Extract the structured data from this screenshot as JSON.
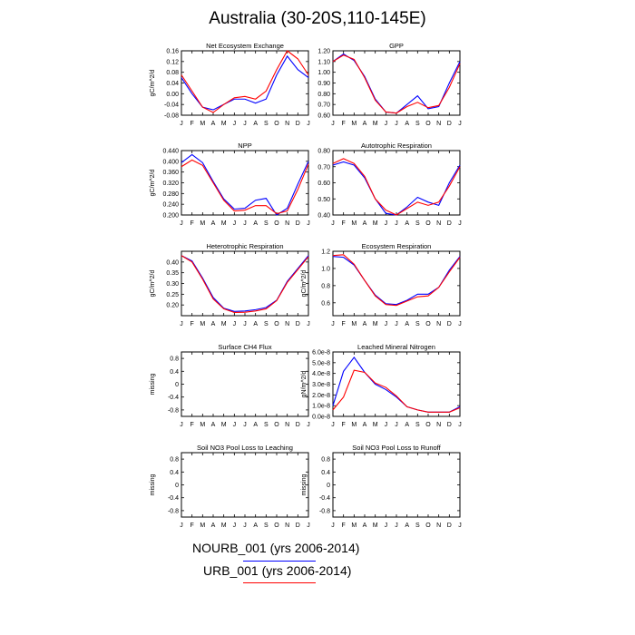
{
  "page_title": "Australia (30-20S,110-145E)",
  "colors": {
    "series_1": "#0000ff",
    "series_2": "#ff0000",
    "axis": "#000000"
  },
  "legend": [
    {
      "label": "NOURB_001 (yrs 2006-2014)",
      "color": "#0000ff"
    },
    {
      "label": "URB_001 (yrs 2006-2014)",
      "color": "#ff0000"
    }
  ],
  "chart_data": [
    {
      "type": "line",
      "title": "Net Ecosystem Exchange",
      "ylabel": "gC/m^2/d",
      "categories": [
        "J",
        "F",
        "M",
        "A",
        "M",
        "J",
        "J",
        "A",
        "S",
        "O",
        "N",
        "D",
        "J"
      ],
      "ylim": [
        -0.08,
        0.16
      ],
      "yticks": [
        -0.08,
        -0.04,
        0.0,
        0.04,
        0.08,
        0.12,
        0.16
      ],
      "ytick_labels": [
        "-0.08",
        "-0.04",
        "0.00",
        "0.04",
        "0.08",
        "0.12",
        "0.16"
      ],
      "series": [
        {
          "values": [
            0.06,
            0.0,
            -0.05,
            -0.06,
            -0.04,
            -0.02,
            -0.02,
            -0.035,
            -0.02,
            0.07,
            0.14,
            0.09,
            0.06
          ]
        },
        {
          "values": [
            0.07,
            0.01,
            -0.05,
            -0.07,
            -0.04,
            -0.015,
            -0.01,
            -0.02,
            0.01,
            0.09,
            0.16,
            0.13,
            0.07
          ]
        }
      ]
    },
    {
      "type": "line",
      "title": "GPP",
      "ylabel": "",
      "categories": [
        "J",
        "F",
        "M",
        "A",
        "M",
        "J",
        "J",
        "A",
        "S",
        "O",
        "N",
        "D",
        "J"
      ],
      "ylim": [
        0.6,
        1.2
      ],
      "yticks": [
        0.6,
        0.7,
        0.8,
        0.9,
        1.0,
        1.1,
        1.2
      ],
      "ytick_labels": [
        "0.60",
        "0.70",
        "0.80",
        "0.90",
        "1.00",
        "1.10",
        "1.20"
      ],
      "series": [
        {
          "values": [
            1.1,
            1.17,
            1.11,
            0.96,
            0.75,
            0.63,
            0.62,
            0.7,
            0.78,
            0.66,
            0.68,
            0.9,
            1.1
          ]
        },
        {
          "values": [
            1.1,
            1.16,
            1.12,
            0.95,
            0.74,
            0.63,
            0.62,
            0.68,
            0.72,
            0.67,
            0.69,
            0.86,
            1.08
          ]
        }
      ]
    },
    {
      "type": "line",
      "title": "NPP",
      "ylabel": "gC/m^2/d",
      "categories": [
        "J",
        "F",
        "M",
        "A",
        "M",
        "J",
        "J",
        "A",
        "S",
        "O",
        "N",
        "D",
        "J"
      ],
      "ylim": [
        0.2,
        0.44
      ],
      "yticks": [
        0.2,
        0.24,
        0.28,
        0.32,
        0.36,
        0.4,
        0.44
      ],
      "ytick_labels": [
        "0.200",
        "0.240",
        "0.280",
        "0.320",
        "0.360",
        "0.400",
        "0.440"
      ],
      "series": [
        {
          "values": [
            0.395,
            0.425,
            0.395,
            0.325,
            0.26,
            0.222,
            0.225,
            0.255,
            0.262,
            0.2,
            0.225,
            0.315,
            0.4
          ]
        },
        {
          "values": [
            0.38,
            0.405,
            0.385,
            0.32,
            0.255,
            0.215,
            0.218,
            0.235,
            0.235,
            0.205,
            0.215,
            0.295,
            0.39
          ]
        }
      ]
    },
    {
      "type": "line",
      "title": "Autotrophic Respiration",
      "ylabel": "",
      "categories": [
        "J",
        "F",
        "M",
        "A",
        "M",
        "J",
        "J",
        "A",
        "S",
        "O",
        "N",
        "D",
        "J"
      ],
      "ylim": [
        0.4,
        0.8
      ],
      "yticks": [
        0.4,
        0.5,
        0.6,
        0.7,
        0.8
      ],
      "ytick_labels": [
        "0.40",
        "0.50",
        "0.60",
        "0.70",
        "0.80"
      ],
      "series": [
        {
          "values": [
            0.71,
            0.73,
            0.71,
            0.63,
            0.5,
            0.41,
            0.4,
            0.45,
            0.51,
            0.48,
            0.46,
            0.6,
            0.71
          ]
        },
        {
          "values": [
            0.72,
            0.75,
            0.72,
            0.64,
            0.5,
            0.43,
            0.4,
            0.44,
            0.48,
            0.46,
            0.48,
            0.58,
            0.7
          ]
        }
      ]
    },
    {
      "type": "line",
      "title": "Heterotrophic Respiration",
      "ylabel": "gC/m^2/d",
      "categories": [
        "J",
        "F",
        "M",
        "A",
        "M",
        "J",
        "J",
        "A",
        "S",
        "O",
        "N",
        "D",
        "J"
      ],
      "ylim": [
        0.15,
        0.45
      ],
      "yticks": [
        0.2,
        0.25,
        0.3,
        0.35,
        0.4
      ],
      "ytick_labels": [
        "0.20",
        "0.25",
        "0.30",
        "0.35",
        "0.40"
      ],
      "series": [
        {
          "values": [
            0.43,
            0.405,
            0.325,
            0.235,
            0.185,
            0.17,
            0.172,
            0.178,
            0.188,
            0.222,
            0.31,
            0.37,
            0.43
          ]
        },
        {
          "values": [
            0.43,
            0.4,
            0.32,
            0.228,
            0.182,
            0.165,
            0.166,
            0.172,
            0.182,
            0.22,
            0.305,
            0.365,
            0.425
          ]
        }
      ]
    },
    {
      "type": "line",
      "title": "Ecosystem Respiration",
      "ylabel": "gC/m^2/d",
      "categories": [
        "J",
        "F",
        "M",
        "A",
        "M",
        "J",
        "J",
        "A",
        "S",
        "O",
        "N",
        "D",
        "J"
      ],
      "ylim": [
        0.45,
        1.2
      ],
      "yticks": [
        0.6,
        0.8,
        1.0,
        1.2
      ],
      "ytick_labels": [
        "0.6",
        "0.8",
        "1.0",
        "1.2"
      ],
      "series": [
        {
          "values": [
            1.14,
            1.13,
            1.04,
            0.86,
            0.69,
            0.59,
            0.58,
            0.63,
            0.7,
            0.7,
            0.78,
            0.98,
            1.14
          ]
        },
        {
          "values": [
            1.15,
            1.16,
            1.05,
            0.86,
            0.68,
            0.58,
            0.57,
            0.62,
            0.67,
            0.68,
            0.78,
            0.96,
            1.13
          ]
        }
      ]
    },
    {
      "type": "line",
      "title": "Surface CH4 Flux",
      "ylabel": "missing",
      "categories": [
        "J",
        "F",
        "M",
        "A",
        "M",
        "J",
        "J",
        "A",
        "S",
        "O",
        "N",
        "D",
        "J"
      ],
      "ylim": [
        -1.0,
        1.0
      ],
      "yticks": [
        -0.8,
        -0.4,
        0.0,
        0.4,
        0.8
      ],
      "ytick_labels": [
        "-0.8",
        "-0.4",
        "0",
        "0.4",
        "0.8"
      ],
      "series": []
    },
    {
      "type": "line",
      "title": "Leached Mineral Nitrogen",
      "ylabel": "gN/m^2/d",
      "categories": [
        "J",
        "F",
        "M",
        "A",
        "M",
        "J",
        "J",
        "A",
        "S",
        "O",
        "N",
        "D",
        "J"
      ],
      "ylim": [
        0.0,
        6e-08
      ],
      "yticks": [
        0.0,
        1e-08,
        2e-08,
        3e-08,
        4e-08,
        5e-08,
        6e-08
      ],
      "ytick_labels": [
        "0.0e-8",
        "1.0e-8",
        "2.0e-8",
        "3.0e-8",
        "4.0e-8",
        "5.0e-8",
        "6.0e-8"
      ],
      "series": [
        {
          "values": [
            1e-08,
            4.2e-08,
            5.5e-08,
            4.1e-08,
            3e-08,
            2.5e-08,
            1.8e-08,
            9e-09,
            6e-09,
            4e-09,
            4e-09,
            4e-09,
            9e-09
          ]
        },
        {
          "values": [
            6e-09,
            1.8e-08,
            4.3e-08,
            4.1e-08,
            3.1e-08,
            2.7e-08,
            1.9e-08,
            9e-09,
            6e-09,
            4e-09,
            4e-09,
            4e-09,
            8e-09
          ]
        }
      ]
    },
    {
      "type": "line",
      "title": "Soil NO3 Pool Loss to Leaching",
      "ylabel": "missing",
      "categories": [
        "J",
        "F",
        "M",
        "A",
        "M",
        "J",
        "J",
        "A",
        "S",
        "O",
        "N",
        "D",
        "J"
      ],
      "ylim": [
        -1.0,
        1.0
      ],
      "yticks": [
        -0.8,
        -0.4,
        0.0,
        0.4,
        0.8
      ],
      "ytick_labels": [
        "-0.8",
        "-0.4",
        "0",
        "0.4",
        "0.8"
      ],
      "series": []
    },
    {
      "type": "line",
      "title": "Soil NO3 Pool Loss to Runoff",
      "ylabel": "missing",
      "categories": [
        "J",
        "F",
        "M",
        "A",
        "M",
        "J",
        "J",
        "A",
        "S",
        "O",
        "N",
        "D",
        "J"
      ],
      "ylim": [
        -1.0,
        1.0
      ],
      "yticks": [
        -0.8,
        -0.4,
        0.0,
        0.4,
        0.8
      ],
      "ytick_labels": [
        "-0.8",
        "-0.4",
        "0",
        "0.4",
        "0.8"
      ],
      "series": []
    }
  ]
}
